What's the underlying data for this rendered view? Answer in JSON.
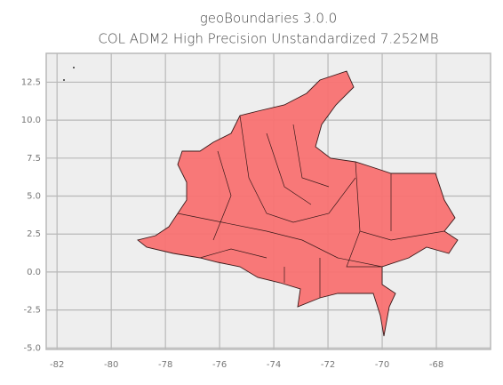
{
  "chart_data": {
    "type": "map",
    "title": "geoBoundaries 3.0.0",
    "subtitle": "COL ADM2 High Precision Unstandardized 7.252MB",
    "xlim": [
      -82.4,
      -66.0
    ],
    "ylim": [
      -5.1,
      14.4
    ],
    "xticks": [
      -82,
      -80,
      -78,
      -76,
      -74,
      -72,
      -70,
      -68
    ],
    "yticks": [
      {
        "value": 12.5,
        "label": "12.5"
      },
      {
        "value": 10,
        "label": "10.0"
      },
      {
        "value": 7.5,
        "label": "7.5"
      },
      {
        "value": 5,
        "label": "5.0"
      },
      {
        "value": 2.5,
        "label": "2.5"
      },
      {
        "value": 0,
        "label": "0.0"
      },
      {
        "value": -2.5,
        "label": "-2.5"
      },
      {
        "value": -5,
        "label": "-5.0"
      }
    ],
    "grid": true
  }
}
